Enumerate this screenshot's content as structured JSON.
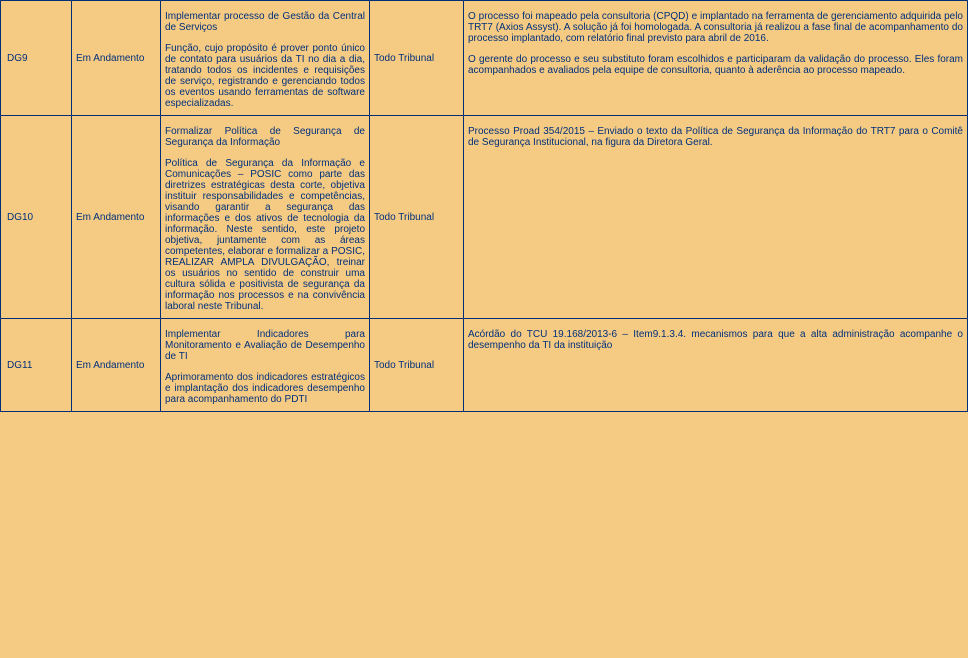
{
  "rows": [
    {
      "id": "DG9",
      "status": "Em Andamento",
      "desc_title": "Implementar processo de Gestão da Central de Serviços",
      "desc_body": "Função, cujo propósito é prover ponto único de contato para usuários da TI no dia a dia, tratando todos os incidentes e requisições de serviço, registrando e gerenciando todos os eventos usando ferramentas de software especializadas.",
      "scope": "Todo Tribunal",
      "result_p1": "O processo foi mapeado pela consultoria (CPQD) e implantado na ferramenta de gerenciamento adquirida pelo TRT7 (Axios Assyst). A solução já foi homologada. A consultoria já realizou a fase final de acompanhamento do processo implantado, com relatório final previsto para abril de 2016.",
      "result_p2": "O gerente do processo e seu substituto foram escolhidos e participaram da validação do processo. Eles foram acompanhados e avaliados pela equipe de consultoria, quanto à aderência ao processo mapeado."
    },
    {
      "id": "DG10",
      "status": "Em Andamento",
      "desc_title": "Formalizar Política de Segurança de Segurança da Informação",
      "desc_body": "Política de Segurança da Informação e Comunicações – POSIC como parte das diretrizes estratégicas desta corte, objetiva instituir responsabilidades e competências, visando garantir a segurança das informações e dos ativos de tecnologia da informação. Neste sentido, este projeto objetiva, juntamente com as áreas competentes, elaborar e formalizar a POSIC, REALIZAR AMPLA DIVULGAÇÃO, treinar os usuários no sentido de construir uma cultura sólida e positivista de segurança da informação nos processos e na convivência laboral neste Tribunal.",
      "scope": "Todo Tribunal",
      "result_p1": "Processo Proad 354/2015 – Enviado o texto da Política de Segurança da Informação do TRT7 para o Comitê de Segurança Institucional, na figura da Diretora Geral.",
      "result_p2": ""
    },
    {
      "id": "DG11",
      "status": "Em Andamento",
      "desc_title": "Implementar Indicadores para Monitoramento e Avaliação de Desempenho de TI",
      "desc_body": "Aprimoramento dos indicadores estratégicos e implantação dos indicadores desempenho para acompanhamento do PDTI",
      "scope": "Todo Tribunal",
      "result_p1": "Acórdão do TCU 19.168/2013-6 – Item9.1.3.4. mecanismos para que a alta administração acompanhe o desempenho da TI da instituição",
      "result_p2": ""
    }
  ]
}
